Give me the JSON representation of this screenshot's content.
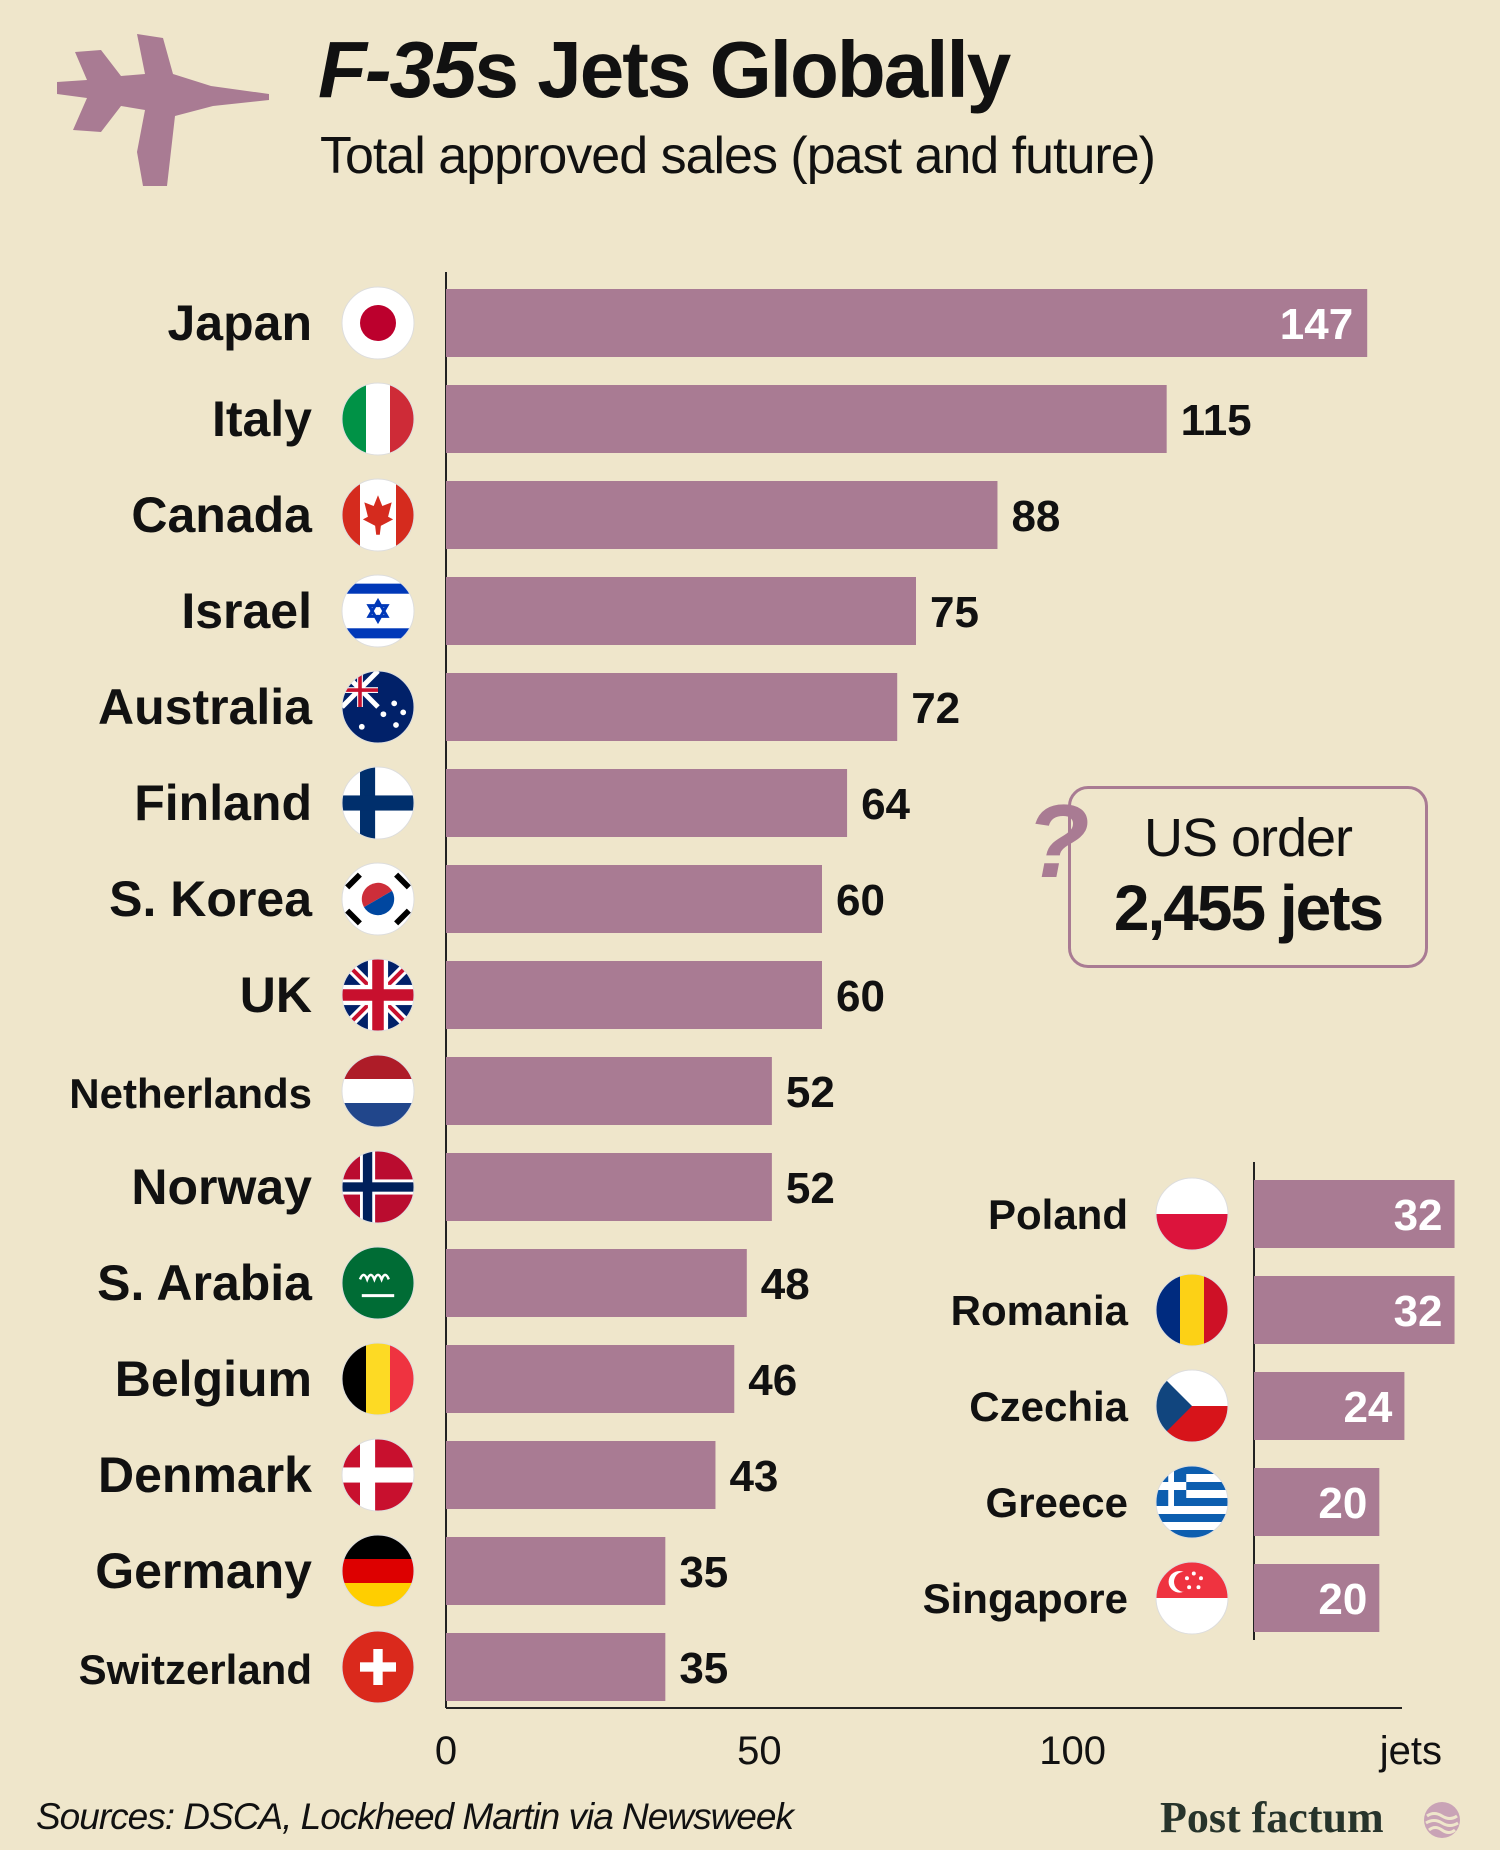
{
  "header": {
    "title_italic": "F-35",
    "title_rest": "s Jets Globally",
    "subtitle": "Total approved sales (past and future)"
  },
  "callout": {
    "label": "US order",
    "value": "2,455 jets",
    "mark": "?"
  },
  "footer": {
    "source": "Sources: DSCA, Lockheed Martin via Newsweek",
    "brand": "Post factum"
  },
  "colors": {
    "background": "#efe6cb",
    "bar": "#a97b93",
    "text": "#111111",
    "brand": "#27342b"
  },
  "chart_data": [
    {
      "type": "bar",
      "orientation": "horizontal",
      "title": "F-35s Jets Globally",
      "subtitle": "Total approved sales (past and future)",
      "categories": [
        "Japan",
        "Italy",
        "Canada",
        "Israel",
        "Australia",
        "Finland",
        "S. Korea",
        "UK",
        "Netherlands",
        "Norway",
        "S. Arabia",
        "Belgium",
        "Denmark",
        "Germany",
        "Switzerland"
      ],
      "values": [
        147,
        115,
        88,
        75,
        72,
        64,
        60,
        60,
        52,
        52,
        48,
        46,
        43,
        35,
        35
      ],
      "value_labels": [
        "147",
        "115",
        "88",
        "75",
        "72",
        "64",
        "60",
        "60",
        "52",
        "52",
        "48",
        "46",
        "43",
        "35",
        "35"
      ],
      "xlim": [
        0,
        150
      ],
      "x_ticks": [
        "0",
        "50",
        "100"
      ],
      "xlabel": "jets",
      "grid": false
    },
    {
      "type": "bar",
      "orientation": "horizontal",
      "categories": [
        "Poland",
        "Romania",
        "Czechia",
        "Greece",
        "Singapore"
      ],
      "values": [
        32,
        32,
        24,
        20,
        20
      ],
      "value_labels": [
        "32",
        "32",
        "24",
        "20",
        "20"
      ],
      "xlim": [
        0,
        150
      ],
      "grid": false
    }
  ]
}
